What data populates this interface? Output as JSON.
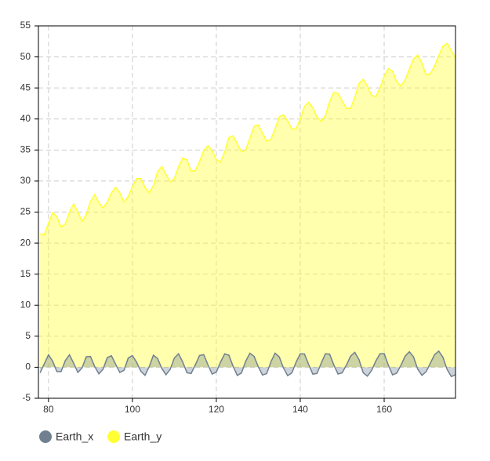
{
  "chart_data": {
    "type": "area",
    "x": [
      78,
      79,
      80,
      81,
      82,
      83,
      84,
      85,
      86,
      87,
      88,
      89,
      90,
      91,
      92,
      93,
      94,
      95,
      96,
      97,
      98,
      99,
      100,
      101,
      102,
      103,
      104,
      105,
      106,
      107,
      108,
      109,
      110,
      111,
      112,
      113,
      114,
      115,
      116,
      117,
      118,
      119,
      120,
      121,
      122,
      123,
      124,
      125,
      126,
      127,
      128,
      129,
      130,
      131,
      132,
      133,
      134,
      135,
      136,
      137,
      138,
      139,
      140,
      141,
      142,
      143,
      144,
      145,
      146,
      147,
      148,
      149,
      150,
      151,
      152,
      153,
      154,
      155,
      156,
      157,
      158,
      159,
      160,
      161,
      162,
      163,
      164,
      165,
      166,
      167,
      168,
      169,
      170,
      171,
      172,
      173,
      174,
      175,
      176,
      177
    ],
    "series": [
      {
        "name": "Earth_x",
        "color": "#708090",
        "values": [
          -0.9,
          0.55,
          2.0,
          0.97,
          -0.7,
          -0.7,
          1.07,
          2.0,
          0.64,
          -0.84,
          -0.1,
          1.68,
          1.74,
          0.14,
          -1.07,
          -0.33,
          1.54,
          1.85,
          0.5,
          -0.85,
          -0.49,
          1.49,
          1.88,
          0.81,
          -0.64,
          -1.3,
          0.09,
          1.93,
          1.42,
          -0.18,
          -1.2,
          -0.35,
          1.49,
          2.17,
          0.84,
          -0.89,
          -1.0,
          0.4,
          1.89,
          2.03,
          0.4,
          -1.1,
          -0.78,
          0.83,
          2.16,
          1.93,
          0.15,
          -1.33,
          -0.92,
          0.97,
          2.26,
          1.75,
          0.08,
          -1.25,
          -1.03,
          0.86,
          2.26,
          1.67,
          -0.12,
          -1.36,
          -0.91,
          0.8,
          2.17,
          2.14,
          0.44,
          -1.12,
          -0.99,
          0.66,
          2.18,
          2.11,
          0.38,
          -1.09,
          -0.89,
          0.35,
          1.79,
          2.4,
          1.23,
          -0.88,
          -1.44,
          -0.53,
          0.99,
          2.17,
          2.2,
          0.33,
          -1.23,
          -0.94,
          0.33,
          1.78,
          2.5,
          1.66,
          -0.31,
          -1.3,
          -0.71,
          0.65,
          2.02,
          2.6,
          1.62,
          -0.35,
          -1.5,
          -1.2
        ]
      },
      {
        "name": "Earth_y",
        "color": "#ffff33",
        "values": [
          21.5,
          21.3,
          23.2,
          24.9,
          24.25,
          22.6,
          23.1,
          25.0,
          26.3,
          25.0,
          23.5,
          24.6,
          26.7,
          27.8,
          26.5,
          25.7,
          26.6,
          28.1,
          29.0,
          28.1,
          26.6,
          27.5,
          29.1,
          30.4,
          30.4,
          29.0,
          28.1,
          29.3,
          31.5,
          32.35,
          31.1,
          29.85,
          30.4,
          32.3,
          33.7,
          33.4,
          31.6,
          31.7,
          33.1,
          34.9,
          35.7,
          34.9,
          33.5,
          33.05,
          34.7,
          37.0,
          37.3,
          36.0,
          34.7,
          35.0,
          36.9,
          38.8,
          39.05,
          37.75,
          36.4,
          36.7,
          38.4,
          40.35,
          40.7,
          39.7,
          38.4,
          38.4,
          40.0,
          42.0,
          42.7,
          41.8,
          40.3,
          39.6,
          40.6,
          42.8,
          44.3,
          44.1,
          42.9,
          41.7,
          41.7,
          43.5,
          45.7,
          46.4,
          45.3,
          43.8,
          43.6,
          45.0,
          46.9,
          48.1,
          47.7,
          46.0,
          45.35,
          46.3,
          48.0,
          49.7,
          50.3,
          49.0,
          47.1,
          47.3,
          48.5,
          50.2,
          51.7,
          52.2,
          51.0,
          49.8
        ]
      }
    ],
    "xlim": [
      77.6,
      177
    ],
    "ylim": [
      -5,
      55
    ],
    "xticks": [
      80,
      100,
      120,
      140,
      160
    ],
    "yticks": [
      -5,
      0,
      5,
      10,
      15,
      20,
      25,
      30,
      35,
      40,
      45,
      50,
      55
    ],
    "grid": true
  }
}
